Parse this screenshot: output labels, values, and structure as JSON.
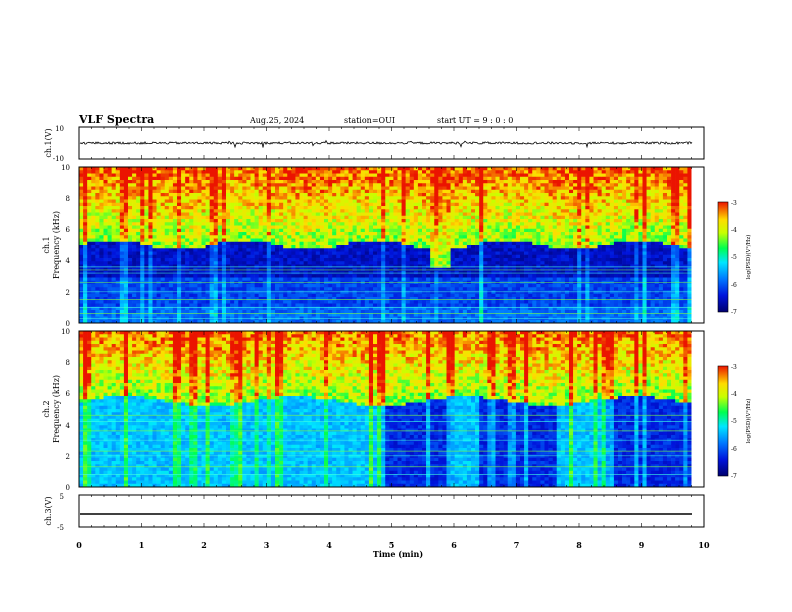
{
  "header": {
    "title": "VLF Spectra",
    "date": "Aug.25, 2024",
    "station": "station=OUI",
    "start_ut": "start  UT  =   9  : 0   : 0"
  },
  "chart_data": [
    {
      "type": "line",
      "panel": "ch1-waveform",
      "ylabel": "ch.1(V)",
      "ylim": [
        -10,
        10
      ],
      "yticks": [
        "10",
        "-10"
      ],
      "xlim": [
        0,
        10
      ],
      "series": [
        {
          "description_values": "noisy trace centred near 0 V with spikes to about ±3 V",
          "baseline": 0
        }
      ],
      "color": "#000000"
    },
    {
      "type": "heatmap",
      "panel": "ch1-spectrogram",
      "ylabel": "ch.1\nFrequency  (kHz)",
      "ylabel_line1": "ch.1",
      "ylabel_line2": "Frequency  (kHz)",
      "ylim": [
        0,
        10
      ],
      "yticks": [
        "0",
        "2",
        "4",
        "6",
        "8",
        "10"
      ],
      "xlim": [
        0,
        9.8
      ],
      "colorbar": {
        "label": "log(PSD)(V²/Hz)",
        "range": [
          -7,
          -3
        ],
        "ticks": [
          "-3",
          "-4",
          "-5",
          "-6",
          "-7"
        ]
      },
      "horizontal_lines_khz": [
        0.3,
        0.6,
        1.0,
        1.5,
        2.0,
        2.6,
        3.2,
        3.4,
        3.6
      ],
      "high_level_boundary_khz": 5.0
    },
    {
      "type": "heatmap",
      "panel": "ch2-spectrogram",
      "ylabel_line1": "ch.2",
      "ylabel_line2": "Frequency  (kHz)",
      "ylim": [
        0,
        10
      ],
      "yticks": [
        "0",
        "2",
        "4",
        "6",
        "8",
        "10"
      ],
      "xlim": [
        0,
        9.8
      ],
      "colorbar": {
        "label": "log(PSD)(V²/Hz)",
        "range": [
          -7,
          -3
        ],
        "ticks": [
          "-3",
          "-4",
          "-5",
          "-6",
          "-7"
        ]
      },
      "horizontal_lines_khz": [
        0.8,
        1.3,
        2.0,
        2.3,
        3.0,
        3.6,
        4.2,
        4.6
      ],
      "high_level_boundary_khz": 5.5
    },
    {
      "type": "line",
      "panel": "ch3-waveform",
      "ylabel": "ch.3(V)",
      "ylim": [
        -5,
        5
      ],
      "yticks": [
        "5",
        "-5"
      ],
      "xlim": [
        0,
        10
      ],
      "series": [
        {
          "values_constant": -2
        }
      ]
    }
  ],
  "xaxis": {
    "label": "Time  (min)",
    "ticks": [
      "0",
      "1",
      "2",
      "3",
      "4",
      "5",
      "6",
      "7",
      "8",
      "9",
      "10"
    ],
    "range": [
      0,
      10
    ]
  },
  "colors": {
    "spec_low": "#00007a",
    "spec_mid_low": "#0040ff",
    "spec_cyan": "#00ffff",
    "spec_green": "#00ff40",
    "spec_yellow": "#ffff00",
    "spec_red": "#ff0000"
  }
}
